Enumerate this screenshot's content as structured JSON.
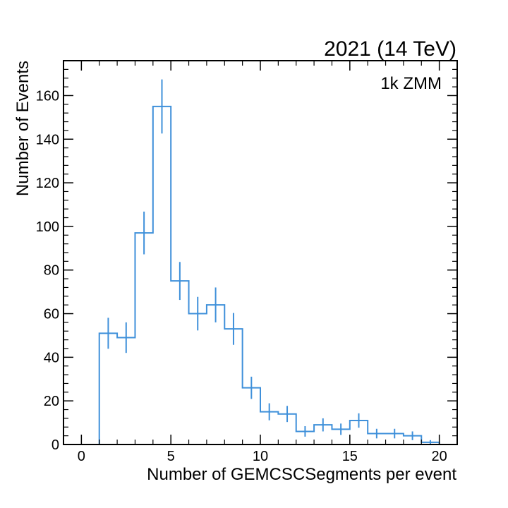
{
  "chart_data": {
    "type": "histogram",
    "title": "2021 (14 TeV)",
    "annotation": "1k ZMM",
    "xlabel": "Number of GEMCSCSegments per event",
    "ylabel": "Number of Events",
    "xlim": [
      -1,
      21
    ],
    "ylim": [
      0,
      176
    ],
    "x_ticks": [
      0,
      5,
      10,
      15,
      20
    ],
    "y_ticks": [
      0,
      20,
      40,
      60,
      80,
      100,
      120,
      140,
      160
    ],
    "x_tick_labels": [
      "0",
      "5",
      "10",
      "15",
      "20"
    ],
    "y_tick_labels": [
      "0",
      "20",
      "40",
      "60",
      "80",
      "100",
      "120",
      "140",
      "160"
    ],
    "bin_edges": [
      1,
      2,
      3,
      4,
      5,
      6,
      7,
      8,
      9,
      10,
      11,
      12,
      13,
      14,
      15,
      16,
      17,
      18,
      19,
      20
    ],
    "series": [
      {
        "values": [
          51,
          49,
          97,
          155,
          75,
          60,
          64,
          53,
          26,
          15,
          14,
          6,
          9,
          7,
          11,
          5,
          5,
          4,
          1
        ],
        "errors": [
          7.1,
          7.0,
          9.8,
          12.4,
          8.7,
          7.7,
          8.0,
          7.3,
          5.1,
          3.9,
          3.7,
          2.4,
          3.0,
          2.6,
          3.3,
          2.2,
          2.2,
          2.0,
          1.0
        ],
        "color": "#3f90da"
      }
    ],
    "grid": false,
    "colors": {
      "line": "#3f90da",
      "axis": "#000000"
    }
  }
}
